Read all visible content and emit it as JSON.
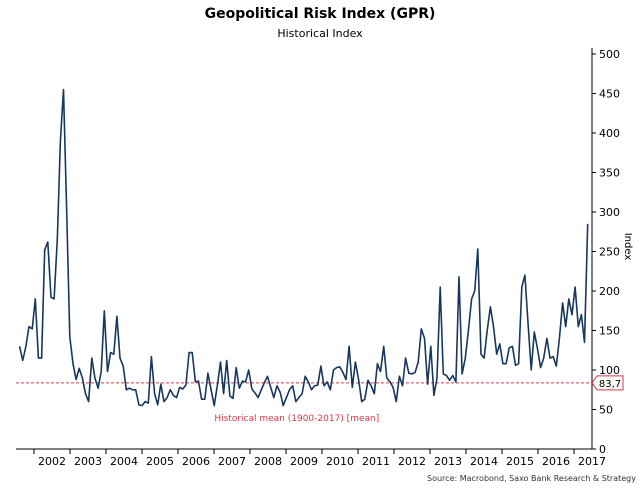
{
  "chart_data": {
    "type": "line",
    "title": "Geopolitical Risk Index (GPR)",
    "subtitle": "Historical Index",
    "ylabel": "Index",
    "ylim": [
      0,
      500
    ],
    "yticks": [
      0,
      50,
      100,
      150,
      200,
      250,
      300,
      350,
      400,
      450,
      500
    ],
    "x_labels": [
      "2002",
      "2003",
      "2004",
      "2005",
      "2006",
      "2007",
      "2008",
      "2009",
      "2010",
      "2011",
      "2012",
      "2013",
      "2014",
      "2015",
      "2016",
      "2017"
    ],
    "x_start": 2001.5,
    "x_end": 2017.5,
    "series": [
      {
        "values": [
          130,
          112,
          130,
          155,
          152,
          190,
          115,
          115,
          252,
          262,
          192,
          190,
          265,
          390,
          455,
          300,
          142,
          108,
          88,
          102,
          90,
          70,
          60,
          115,
          90,
          77,
          98,
          175,
          98,
          122,
          120,
          168,
          115,
          105,
          75,
          77,
          75,
          75,
          56,
          55,
          60,
          58,
          117,
          70,
          56,
          82,
          60,
          65,
          75,
          68,
          65,
          78,
          76,
          81,
          122,
          122,
          85,
          86,
          63,
          63,
          96,
          75,
          55,
          80,
          110,
          70,
          112,
          67,
          64,
          103,
          77,
          86,
          85,
          100,
          76,
          71,
          65,
          75,
          84,
          92,
          78,
          65,
          80,
          72,
          55,
          65,
          75,
          80,
          60,
          65,
          70,
          92,
          85,
          75,
          80,
          81,
          105,
          80,
          85,
          75,
          100,
          103,
          104,
          97,
          88,
          130,
          78,
          110,
          88,
          60,
          63,
          87,
          80,
          70,
          108,
          98,
          130,
          90,
          85,
          78,
          60,
          92,
          80,
          115,
          96,
          95,
          97,
          110,
          152,
          140,
          82,
          130,
          68,
          90,
          205,
          95,
          93,
          87,
          93,
          85,
          218,
          95,
          115,
          150,
          190,
          200,
          253,
          120,
          115,
          150,
          180,
          155,
          120,
          133,
          108,
          108,
          128,
          130,
          106,
          108,
          205,
          220,
          160,
          100,
          148,
          127,
          103,
          115,
          140,
          115,
          117,
          105,
          140,
          185,
          155,
          190,
          170,
          205,
          155,
          170,
          135,
          285
        ]
      }
    ],
    "reference_line": {
      "label": "Historical mean (1900-2017) [mean]",
      "value": 83.7,
      "value_label": "83,7"
    },
    "source": "Source: Macrobond, Saxo Bank Research & Strategy",
    "colors": {
      "line": "#17375e",
      "mean": "#d23a4a",
      "axis": "#000000"
    }
  }
}
